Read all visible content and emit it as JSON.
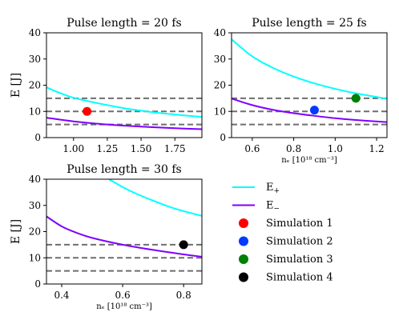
{
  "figure": {
    "legend": [
      {
        "label": "E+",
        "kind": "line",
        "color": "#00ffff"
      },
      {
        "label": "E−",
        "kind": "line",
        "color": "#7f00ff"
      },
      {
        "label": "Simulation 1",
        "kind": "marker",
        "color": "#ff0000"
      },
      {
        "label": "Simulation 2",
        "kind": "marker",
        "color": "#0039ff"
      },
      {
        "label": "Simulation 3",
        "kind": "marker",
        "color": "#008000"
      },
      {
        "label": "Simulation 4",
        "kind": "marker",
        "color": "#000000"
      }
    ]
  },
  "chart_data": [
    {
      "type": "line",
      "title": "Pulse length = 20 fs",
      "ylabel": "E [J]",
      "xlabel": "",
      "xlim": [
        0.8,
        1.95
      ],
      "ylim": [
        0,
        40
      ],
      "xticks": [
        1.0,
        1.25,
        1.5,
        1.75
      ],
      "xtick_labels": [
        "1.00",
        "1.25",
        "1.50",
        "1.75"
      ],
      "yticks": [
        0,
        10,
        20,
        30,
        40
      ],
      "grid": false,
      "hlines": [
        5,
        10,
        15
      ],
      "series": [
        {
          "name": "E+",
          "color": "#00ffff",
          "x": [
            0.8,
            0.9,
            1.0,
            1.1,
            1.25,
            1.4,
            1.5,
            1.6,
            1.75,
            1.95
          ],
          "y": [
            19.2,
            17.0,
            15.2,
            14.0,
            12.4,
            11.0,
            10.3,
            9.6,
            8.8,
            7.9
          ]
        },
        {
          "name": "E−",
          "color": "#7f00ff",
          "x": [
            0.8,
            1.0,
            1.25,
            1.5,
            1.75,
            1.95
          ],
          "y": [
            7.6,
            6.2,
            5.0,
            4.2,
            3.6,
            3.2
          ]
        }
      ],
      "points": [
        {
          "name": "Simulation 1",
          "color": "#ff0000",
          "x": 1.1,
          "y": 10
        }
      ]
    },
    {
      "type": "line",
      "title": "Pulse length = 25 fs",
      "ylabel": "",
      "xlabel": "nₑ [10¹⁸ cm⁻³]",
      "xlim": [
        0.5,
        1.25
      ],
      "ylim": [
        0,
        40
      ],
      "xticks": [
        0.6,
        0.8,
        1.0,
        1.2
      ],
      "xtick_labels": [
        "0.6",
        "0.8",
        "1.0",
        "1.2"
      ],
      "yticks": [
        0,
        10,
        20,
        30,
        40
      ],
      "grid": false,
      "hlines": [
        5,
        10,
        15
      ],
      "series": [
        {
          "name": "E+",
          "color": "#00ffff",
          "x": [
            0.5,
            0.6,
            0.7,
            0.8,
            0.9,
            1.0,
            1.1,
            1.25
          ],
          "y": [
            37.5,
            31.0,
            26.6,
            23.3,
            20.7,
            18.6,
            16.9,
            14.8
          ]
        },
        {
          "name": "E−",
          "color": "#7f00ff",
          "x": [
            0.5,
            0.6,
            0.7,
            0.8,
            0.9,
            1.0,
            1.1,
            1.25
          ],
          "y": [
            14.9,
            12.4,
            10.6,
            9.3,
            8.3,
            7.4,
            6.7,
            5.9
          ]
        }
      ],
      "points": [
        {
          "name": "Simulation 2",
          "color": "#0039ff",
          "x": 0.9,
          "y": 10.5
        },
        {
          "name": "Simulation 3",
          "color": "#008000",
          "x": 1.1,
          "y": 15
        }
      ]
    },
    {
      "type": "line",
      "title": "Pulse length = 30 fs",
      "ylabel": "E [J]",
      "xlabel": "nₑ [10¹⁸ cm⁻³]",
      "xlim": [
        0.35,
        0.86
      ],
      "ylim": [
        0,
        40
      ],
      "xticks": [
        0.4,
        0.6,
        0.8
      ],
      "xtick_labels": [
        "0.4",
        "0.6",
        "0.8"
      ],
      "yticks": [
        0,
        10,
        20,
        30,
        40
      ],
      "grid": false,
      "hlines": [
        5,
        10,
        15
      ],
      "series": [
        {
          "name": "E+",
          "color": "#00ffff",
          "x": [
            0.555,
            0.6,
            0.65,
            0.7,
            0.75,
            0.8,
            0.86
          ],
          "y": [
            40.0,
            37.0,
            34.2,
            31.8,
            29.6,
            27.8,
            26.0
          ]
        },
        {
          "name": "E−",
          "color": "#7f00ff",
          "x": [
            0.35,
            0.4,
            0.45,
            0.5,
            0.6,
            0.7,
            0.8,
            0.86
          ],
          "y": [
            25.8,
            22.0,
            19.5,
            17.6,
            15.0,
            13.0,
            11.3,
            10.4
          ]
        }
      ],
      "points": [
        {
          "name": "Simulation 4",
          "color": "#000000",
          "x": 0.8,
          "y": 15
        }
      ]
    }
  ]
}
